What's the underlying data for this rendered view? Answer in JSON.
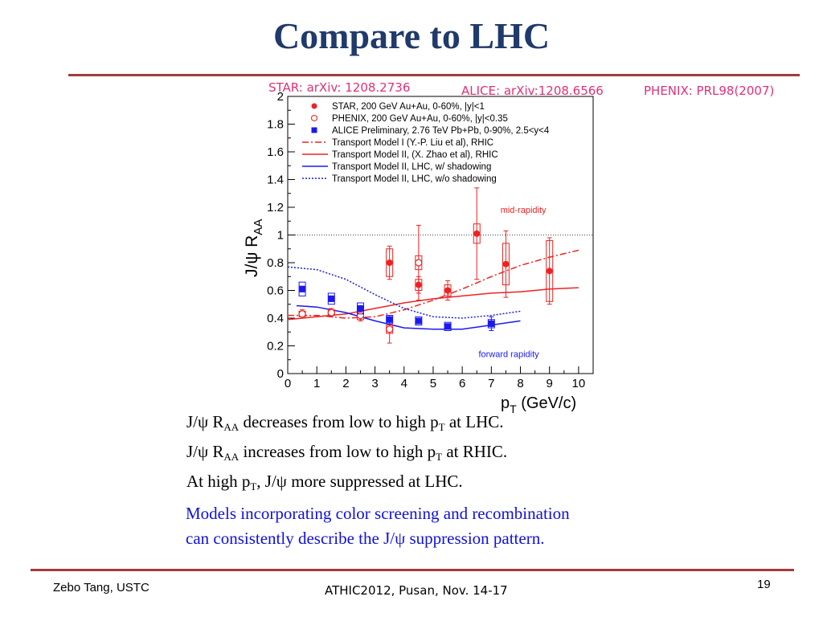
{
  "slide": {
    "title": "Compare to LHC",
    "refs": {
      "star": "STAR: arXiv: 1208.2736",
      "alice": "ALICE: arXiv:1208.6566",
      "phenix": "PHENIX: PRL98(2007)"
    },
    "bullets": [
      {
        "pre": "J/ψ  R",
        "sub1": "AA",
        "mid": " decreases from low to high p",
        "sub2": "T",
        "post": " at LHC."
      },
      {
        "pre": "J/ψ  R",
        "sub1": "AA",
        "mid": " increases from low to high p",
        "sub2": "T",
        "post": " at RHIC."
      },
      {
        "pre": "At high p",
        "sub1": "T",
        "mid": ", J/ψ more suppressed at LHC.",
        "sub2": "",
        "post": ""
      }
    ],
    "note_line1": "Models incorporating color screening and recombination",
    "note_line2": "can consistently describe the J/ψ suppression pattern.",
    "footer_left": "Zebo Tang, USTC",
    "footer_center": "ATHIC2012, Pusan, Nov. 14-17",
    "page_number": "19"
  },
  "chart_data": {
    "type": "scatter",
    "xlabel_main": "p",
    "xlabel_sub": "T",
    "xlabel_unit": " (GeV/c)",
    "ylabel_main": "J/ψ R",
    "ylabel_sub": "AA",
    "xlim": [
      0,
      10.5
    ],
    "ylim": [
      0,
      2.0
    ],
    "xticks": [
      0,
      1,
      2,
      3,
      4,
      5,
      6,
      7,
      8,
      9,
      10
    ],
    "yticks": [
      0,
      0.2,
      0.4,
      0.6,
      0.8,
      1,
      1.2,
      1.4,
      1.6,
      1.8,
      2
    ],
    "ytick_labels": [
      "0",
      "0.2",
      "0.4",
      "0.6",
      "0.8",
      "1",
      "1.2",
      "1.4",
      "1.6",
      "1.8",
      "2"
    ],
    "reference_line": 1.0,
    "annotations": [
      {
        "text": "mid-rapidity",
        "x": 8.1,
        "y": 1.16,
        "color": "#ee2222"
      },
      {
        "text": "forward rapidity",
        "x": 7.6,
        "y": 0.12,
        "color": "#1a1aee"
      }
    ],
    "colors": {
      "red": "#ee2222",
      "blue": "#1a1aee"
    },
    "series": [
      {
        "name": "STAR, 200 GeV Au+Au, 0-60%, |y|<1",
        "marker": "filled-circle",
        "color": "#ee2222",
        "points": [
          {
            "x": 3.5,
            "y": 0.8,
            "err": 0.12,
            "sys": 0.1
          },
          {
            "x": 4.5,
            "y": 0.64,
            "err": 0.06,
            "sys": 0.04
          },
          {
            "x": 5.5,
            "y": 0.6,
            "err": 0.07,
            "sys": 0.04
          },
          {
            "x": 6.5,
            "y": 1.01,
            "err": 0.33,
            "sys": 0.07
          },
          {
            "x": 7.5,
            "y": 0.79,
            "err": 0.24,
            "sys": 0.15
          },
          {
            "x": 9.0,
            "y": 0.74,
            "err": 0.24,
            "sys": 0.22
          }
        ]
      },
      {
        "name": "PHENIX, 200 GeV Au+Au, 0-60%, |y|<0.35",
        "marker": "open-circle",
        "color": "#ee2222",
        "points": [
          {
            "x": 0.5,
            "y": 0.43,
            "err": 0.03,
            "sys": 0.02
          },
          {
            "x": 1.5,
            "y": 0.44,
            "err": 0.03,
            "sys": 0.02
          },
          {
            "x": 2.5,
            "y": 0.42,
            "err": 0.04,
            "sys": 0.03
          },
          {
            "x": 3.5,
            "y": 0.32,
            "err": 0.1,
            "sys": 0.03
          },
          {
            "x": 4.5,
            "y": 0.8,
            "err": 0.27,
            "sys": 0.05
          }
        ]
      },
      {
        "name": "ALICE Preliminary, 2.76 TeV Pb+Pb, 0-90%, 2.5<y<4",
        "marker": "filled-square",
        "color": "#1a1aee",
        "points": [
          {
            "x": 0.5,
            "y": 0.61,
            "err": 0.02,
            "sys": 0.05
          },
          {
            "x": 1.5,
            "y": 0.54,
            "err": 0.02,
            "sys": 0.04
          },
          {
            "x": 2.5,
            "y": 0.47,
            "err": 0.02,
            "sys": 0.04
          },
          {
            "x": 3.5,
            "y": 0.39,
            "err": 0.02,
            "sys": 0.03
          },
          {
            "x": 4.5,
            "y": 0.38,
            "err": 0.02,
            "sys": 0.03
          },
          {
            "x": 5.5,
            "y": 0.34,
            "err": 0.02,
            "sys": 0.03
          },
          {
            "x": 7.0,
            "y": 0.36,
            "err": 0.05,
            "sys": 0.03
          }
        ]
      }
    ],
    "curves": [
      {
        "name": "Transport Model I (Y.-P. Liu et al), RHIC",
        "color": "#ee2222",
        "dash": "8,3,2,3",
        "points": [
          [
            0,
            0.42
          ],
          [
            1,
            0.42
          ],
          [
            2,
            0.4
          ],
          [
            3,
            0.41
          ],
          [
            4,
            0.46
          ],
          [
            5,
            0.53
          ],
          [
            6,
            0.61
          ],
          [
            7,
            0.7
          ],
          [
            8,
            0.78
          ],
          [
            9,
            0.84
          ],
          [
            10,
            0.89
          ]
        ]
      },
      {
        "name": "Transport Model II, (X. Zhao et al), RHIC",
        "color": "#ee2222",
        "dash": "",
        "points": [
          [
            0,
            0.39
          ],
          [
            1,
            0.41
          ],
          [
            2,
            0.43
          ],
          [
            3,
            0.47
          ],
          [
            4,
            0.51
          ],
          [
            5,
            0.54
          ],
          [
            6,
            0.56
          ],
          [
            7,
            0.58
          ],
          [
            8,
            0.59
          ],
          [
            9,
            0.61
          ],
          [
            10,
            0.62
          ]
        ]
      },
      {
        "name": "Transport Model II, LHC, w/ shadowing",
        "color": "#1a1aee",
        "dash": "",
        "points": [
          [
            0.3,
            0.49
          ],
          [
            1,
            0.48
          ],
          [
            2,
            0.44
          ],
          [
            3,
            0.38
          ],
          [
            4,
            0.33
          ],
          [
            5,
            0.32
          ],
          [
            6,
            0.32
          ],
          [
            7,
            0.35
          ],
          [
            8,
            0.38
          ]
        ]
      },
      {
        "name": "Transport Model II, LHC, w/o shadowing",
        "color": "#1a1aee",
        "dash": "2,2",
        "points": [
          [
            0,
            0.77
          ],
          [
            1,
            0.75
          ],
          [
            2,
            0.68
          ],
          [
            3,
            0.57
          ],
          [
            4,
            0.47
          ],
          [
            5,
            0.41
          ],
          [
            6,
            0.4
          ],
          [
            7,
            0.42
          ],
          [
            8,
            0.45
          ]
        ]
      }
    ]
  }
}
